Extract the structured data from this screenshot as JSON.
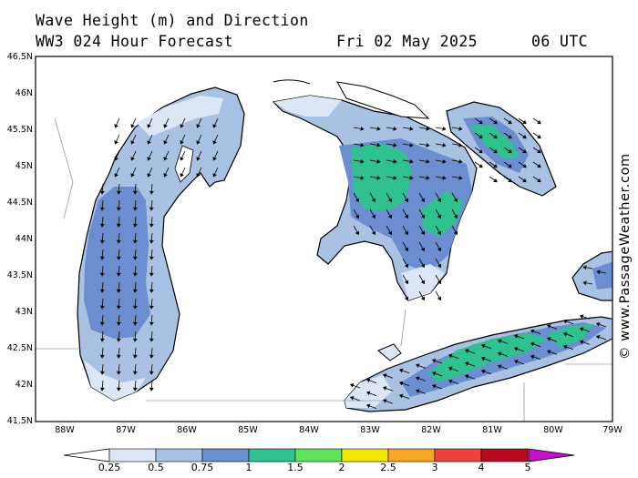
{
  "header": {
    "title": "Wave Height (m) and Direction",
    "model": "WW3 024 Hour Forecast",
    "date": "Fri 02 May 2025",
    "time": "06 UTC"
  },
  "credit": "© www.PassageWeather.com",
  "axes": {
    "lat_labels": [
      "46.5N",
      "46N",
      "45.5N",
      "45N",
      "44.5N",
      "44N",
      "43.5N",
      "43N",
      "42.5N",
      "42N",
      "41.5N"
    ],
    "lon_labels": [
      "88W",
      "87W",
      "86W",
      "85W",
      "84W",
      "83W",
      "82W",
      "81W",
      "80W",
      "79W"
    ]
  },
  "colorbar": {
    "labels": [
      "0.25",
      "0.5",
      "0.75",
      "1",
      "1.5",
      "2",
      "2.5",
      "3",
      "4",
      "5"
    ],
    "colors": [
      "#ffffff",
      "#dce6f4",
      "#a9c1e2",
      "#6a8ecf",
      "#2fc190",
      "#5fe35a",
      "#f2e602",
      "#f6a623",
      "#ef4239",
      "#b80a1f",
      "#c213c6"
    ]
  },
  "map": {
    "land_color": "#ffffff",
    "shore_color": "#000000",
    "border_color": "#9a9a9a",
    "water_colors": {
      "light": "#dce6f4",
      "mid": "#a9c1e2",
      "dark": "#6a8ecf",
      "green": "#2fc190"
    }
  }
}
